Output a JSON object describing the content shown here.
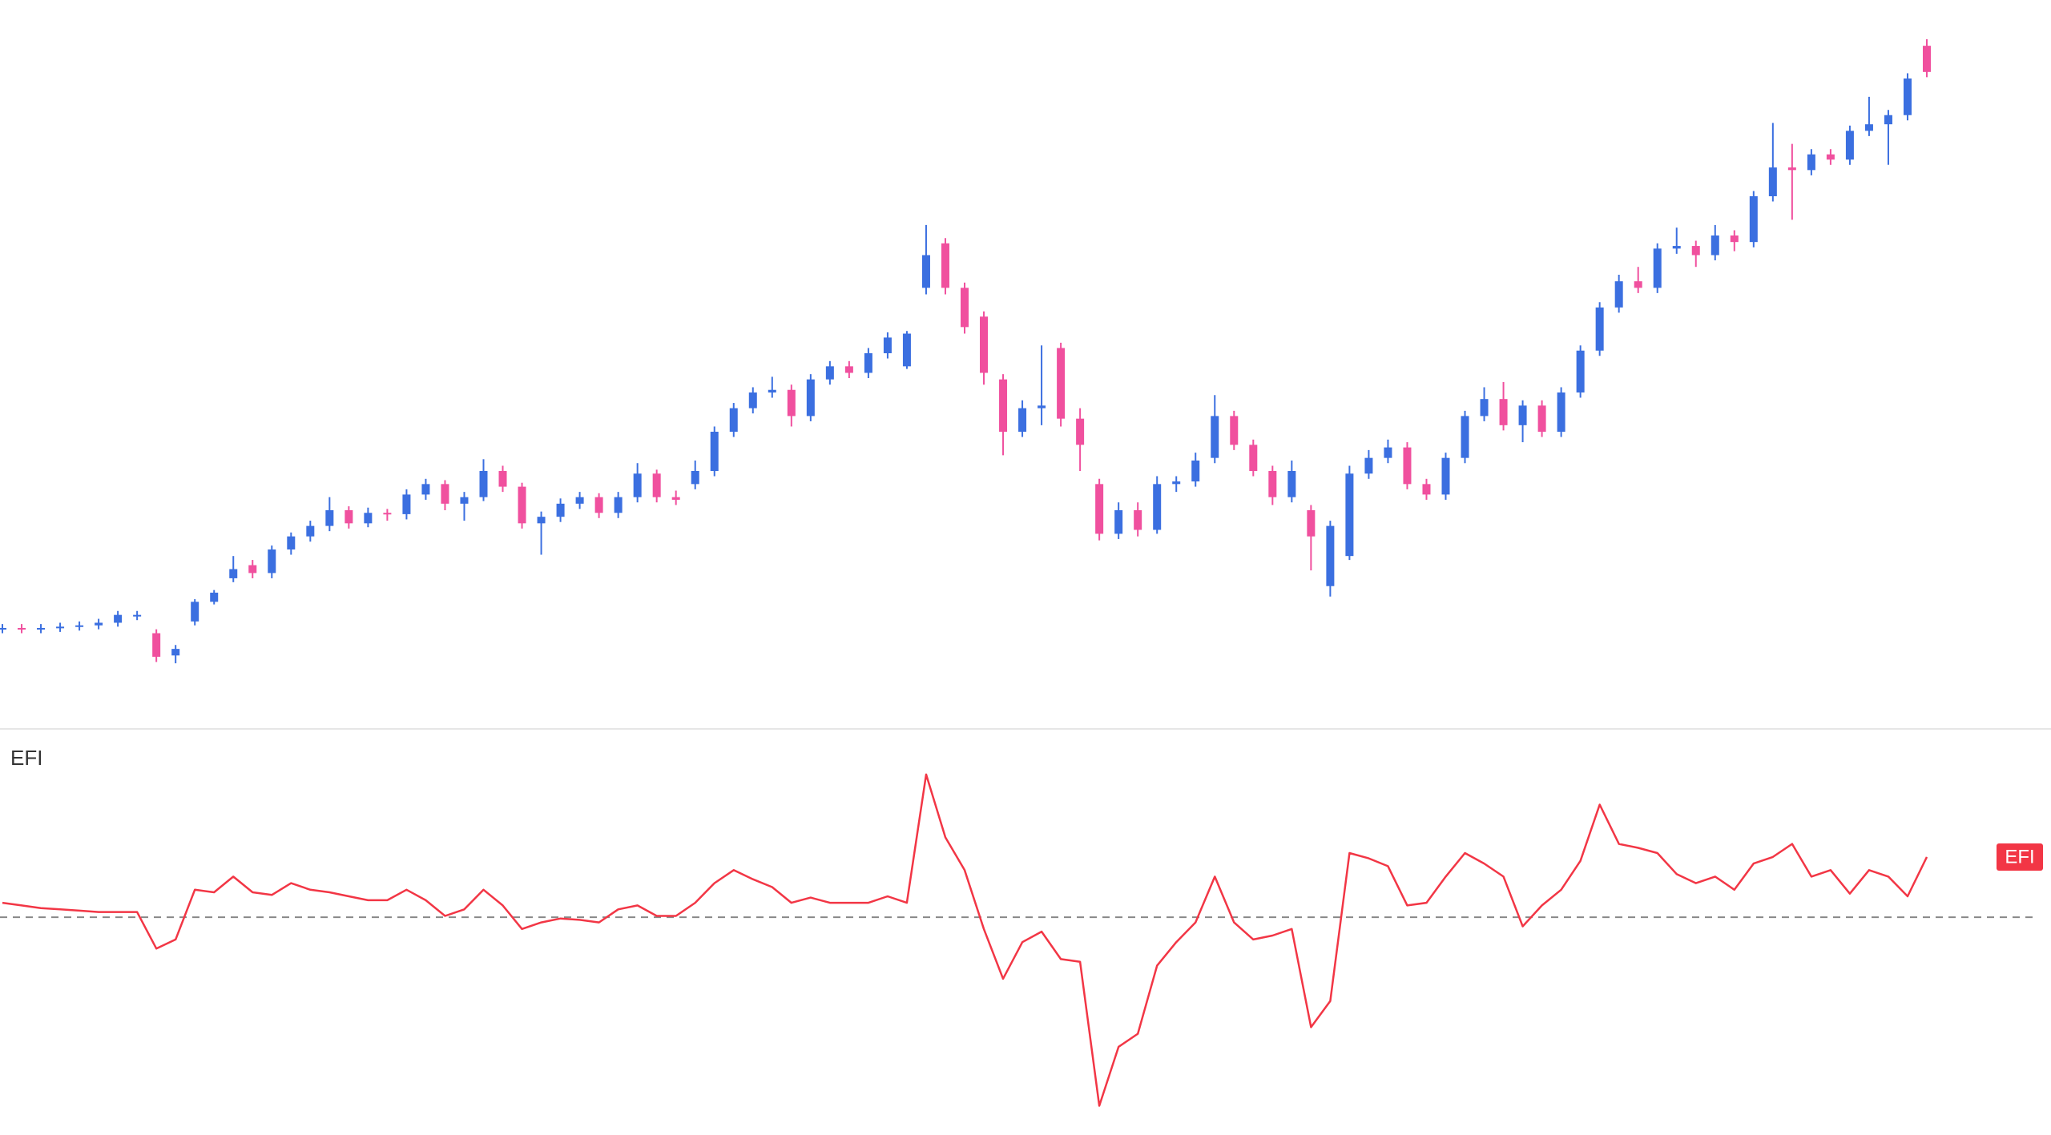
{
  "chart_data": [
    {
      "type": "candlestick",
      "up_color": "#3b6fe0",
      "down_color": "#f0509e",
      "ylim": [
        0,
        54
      ],
      "candles": [
        [
          5.9,
          6.3,
          5.6,
          6.0
        ],
        [
          6.0,
          6.3,
          5.6,
          5.9
        ],
        [
          5.9,
          6.3,
          5.6,
          6.0
        ],
        [
          6.0,
          6.4,
          5.7,
          6.1
        ],
        [
          6.1,
          6.5,
          5.8,
          6.2
        ],
        [
          6.2,
          6.7,
          5.9,
          6.4
        ],
        [
          6.4,
          7.3,
          6.1,
          7.0
        ],
        [
          7.0,
          7.3,
          6.6,
          7.0
        ],
        [
          5.6,
          5.9,
          3.4,
          3.8
        ],
        [
          3.9,
          4.7,
          3.3,
          4.4
        ],
        [
          6.5,
          8.2,
          6.2,
          8.0
        ],
        [
          8.0,
          8.9,
          7.8,
          8.7
        ],
        [
          9.8,
          11.5,
          9.5,
          10.5
        ],
        [
          10.8,
          11.2,
          9.8,
          10.2
        ],
        [
          10.2,
          12.3,
          9.8,
          12.0
        ],
        [
          12.0,
          13.3,
          11.6,
          13.0
        ],
        [
          13.0,
          14.2,
          12.6,
          13.8
        ],
        [
          13.8,
          16.0,
          13.4,
          15.0
        ],
        [
          15.0,
          15.3,
          13.6,
          14.0
        ],
        [
          14.0,
          15.2,
          13.7,
          14.8
        ],
        [
          14.8,
          15.1,
          14.2,
          14.7
        ],
        [
          14.7,
          16.6,
          14.3,
          16.2
        ],
        [
          16.2,
          17.4,
          15.8,
          17.0
        ],
        [
          17.0,
          17.3,
          15.0,
          15.5
        ],
        [
          15.5,
          16.4,
          14.2,
          16.0
        ],
        [
          16.0,
          18.9,
          15.7,
          18.0
        ],
        [
          18.0,
          18.4,
          16.4,
          16.8
        ],
        [
          16.8,
          17.1,
          13.6,
          14.0
        ],
        [
          14.0,
          14.9,
          11.6,
          14.5
        ],
        [
          14.5,
          15.9,
          14.1,
          15.5
        ],
        [
          15.5,
          16.4,
          15.1,
          16.0
        ],
        [
          16.0,
          16.3,
          14.4,
          14.8
        ],
        [
          14.8,
          16.4,
          14.4,
          16.0
        ],
        [
          16.0,
          18.6,
          15.6,
          17.8
        ],
        [
          17.8,
          18.1,
          15.6,
          16.0
        ],
        [
          16.0,
          16.5,
          15.4,
          15.8
        ],
        [
          17.0,
          18.8,
          16.6,
          18.0
        ],
        [
          18.0,
          21.4,
          17.6,
          21.0
        ],
        [
          21.0,
          23.2,
          20.6,
          22.8
        ],
        [
          22.8,
          24.4,
          22.4,
          24.0
        ],
        [
          24.0,
          25.2,
          23.6,
          24.2
        ],
        [
          24.2,
          24.6,
          21.4,
          22.2
        ],
        [
          22.2,
          25.4,
          21.8,
          25.0
        ],
        [
          25.0,
          26.4,
          24.6,
          26.0
        ],
        [
          26.0,
          26.4,
          25.1,
          25.5
        ],
        [
          25.5,
          27.4,
          25.1,
          27.0
        ],
        [
          27.0,
          28.6,
          26.6,
          28.2
        ],
        [
          26.0,
          28.7,
          25.8,
          28.5
        ],
        [
          32.0,
          36.8,
          31.5,
          34.5
        ],
        [
          35.4,
          35.8,
          31.5,
          32.0
        ],
        [
          32.0,
          32.4,
          28.5,
          29.0
        ],
        [
          29.8,
          30.2,
          24.6,
          25.5
        ],
        [
          25.0,
          25.4,
          19.2,
          21.0
        ],
        [
          21.0,
          23.4,
          20.6,
          22.8
        ],
        [
          22.8,
          27.6,
          21.5,
          23.0
        ],
        [
          27.4,
          27.8,
          21.4,
          22.0
        ],
        [
          22.0,
          22.8,
          18.0,
          20.0
        ],
        [
          17.0,
          17.4,
          12.7,
          13.2
        ],
        [
          13.2,
          15.6,
          12.8,
          15.0
        ],
        [
          15.0,
          15.6,
          13.0,
          13.5
        ],
        [
          13.5,
          17.6,
          13.2,
          17.0
        ],
        [
          17.0,
          17.6,
          16.4,
          17.2
        ],
        [
          17.2,
          19.4,
          16.8,
          18.8
        ],
        [
          19.0,
          23.8,
          18.6,
          22.2
        ],
        [
          22.2,
          22.6,
          19.6,
          20.0
        ],
        [
          20.0,
          20.4,
          17.6,
          18.0
        ],
        [
          18.0,
          18.4,
          15.4,
          16.0
        ],
        [
          16.0,
          18.8,
          15.6,
          18.0
        ],
        [
          15.0,
          15.4,
          10.4,
          13.0
        ],
        [
          9.2,
          14.2,
          8.4,
          13.8
        ],
        [
          11.5,
          18.4,
          11.2,
          17.8
        ],
        [
          17.8,
          19.6,
          17.4,
          19.0
        ],
        [
          19.0,
          20.4,
          18.6,
          19.8
        ],
        [
          19.8,
          20.2,
          16.6,
          17.0
        ],
        [
          17.0,
          17.4,
          15.8,
          16.2
        ],
        [
          16.2,
          19.4,
          15.8,
          19.0
        ],
        [
          19.0,
          22.6,
          18.6,
          22.2
        ],
        [
          22.2,
          24.4,
          21.8,
          23.5
        ],
        [
          23.5,
          24.8,
          21.1,
          21.5
        ],
        [
          21.5,
          23.4,
          20.2,
          23.0
        ],
        [
          23.0,
          23.4,
          20.6,
          21.0
        ],
        [
          21.0,
          24.4,
          20.6,
          24.0
        ],
        [
          24.0,
          27.6,
          23.6,
          27.2
        ],
        [
          27.2,
          30.9,
          26.8,
          30.5
        ],
        [
          30.5,
          33.0,
          30.1,
          32.5
        ],
        [
          32.5,
          33.6,
          31.6,
          32.0
        ],
        [
          32.0,
          35.4,
          31.6,
          35.0
        ],
        [
          35.0,
          36.6,
          34.6,
          35.2
        ],
        [
          35.2,
          35.6,
          33.6,
          34.5
        ],
        [
          34.5,
          36.8,
          34.1,
          36.0
        ],
        [
          36.0,
          36.4,
          34.8,
          35.5
        ],
        [
          35.5,
          39.4,
          35.1,
          39.0
        ],
        [
          39.0,
          44.6,
          38.6,
          41.2
        ],
        [
          41.2,
          43.0,
          37.2,
          41.0
        ],
        [
          41.0,
          42.6,
          40.6,
          42.2
        ],
        [
          42.2,
          42.6,
          41.4,
          41.8
        ],
        [
          41.8,
          44.4,
          41.4,
          44.0
        ],
        [
          44.0,
          46.6,
          43.6,
          44.5
        ],
        [
          44.5,
          45.6,
          41.4,
          45.2
        ],
        [
          45.2,
          48.4,
          44.8,
          48.0
        ],
        [
          50.5,
          51.0,
          48.1,
          48.5
        ]
      ]
    },
    {
      "type": "line",
      "title": "EFI",
      "ylim": [
        -15.9,
        14.2
      ],
      "zero_line": 0,
      "series": [
        {
          "name": "EFI",
          "color": "#f23645",
          "values": [
            1.1,
            0.9,
            0.7,
            0.6,
            0.5,
            0.4,
            0.4,
            0.4,
            -2.4,
            -1.7,
            2.1,
            1.9,
            3.1,
            1.9,
            1.7,
            2.6,
            2.1,
            1.9,
            1.6,
            1.3,
            1.3,
            2.1,
            1.3,
            0.1,
            0.6,
            2.1,
            0.9,
            -0.9,
            -0.4,
            -0.1,
            -0.2,
            -0.4,
            0.6,
            0.9,
            0.1,
            0.1,
            1.1,
            2.6,
            3.6,
            2.9,
            2.3,
            1.1,
            1.5,
            1.1,
            1.1,
            1.1,
            1.6,
            1.1,
            10.9,
            6.1,
            3.6,
            -0.9,
            -4.7,
            -1.9,
            -1.1,
            -3.2,
            -3.4,
            -14.4,
            -9.9,
            -8.9,
            -3.7,
            -1.9,
            -0.4,
            3.1,
            -0.4,
            -1.7,
            -1.4,
            -0.9,
            -8.4,
            -6.4,
            4.9,
            4.5,
            3.9,
            0.9,
            1.1,
            3.1,
            4.9,
            4.1,
            3.1,
            -0.7,
            0.9,
            2.1,
            4.3,
            8.6,
            5.6,
            5.3,
            4.9,
            3.3,
            2.6,
            3.1,
            2.1,
            4.1,
            4.6,
            5.6,
            3.1,
            3.6,
            1.8,
            3.6,
            3.1,
            1.6,
            4.6
          ]
        }
      ]
    }
  ]
}
